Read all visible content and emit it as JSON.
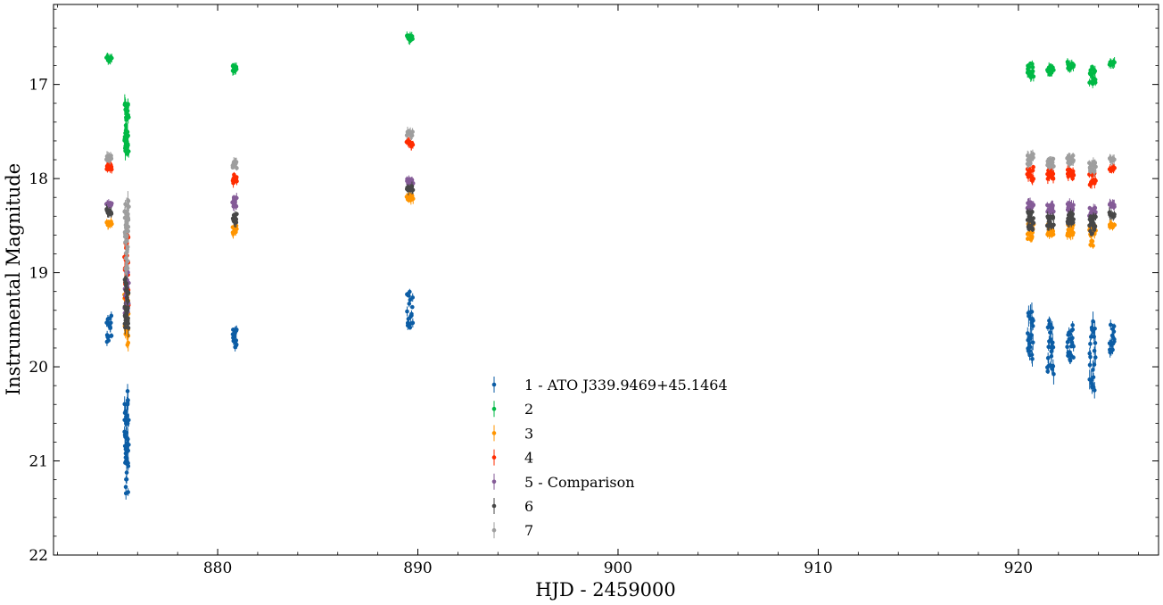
{
  "chart_data": {
    "type": "scatter",
    "title": "",
    "xlabel": "HJD - 2459000",
    "ylabel": "Instrumental Magnitude",
    "xlim": [
      871.8,
      927.0
    ],
    "ylim": [
      22.0,
      16.15
    ],
    "y_inverted": true,
    "x_ticks": [
      880,
      890,
      900,
      910,
      920
    ],
    "y_ticks": [
      17,
      18,
      19,
      20,
      21,
      22
    ],
    "grid": false,
    "legend_position": "lower-center",
    "error_bars": true,
    "series": [
      {
        "name": "1 - ATO J339.9469+45.1464",
        "color": "#0c5da5",
        "segments": [
          {
            "t0": 874.45,
            "t1": 874.7,
            "base": 19.6,
            "amp": 0.35,
            "n": 18
          },
          {
            "t0": 875.35,
            "t1": 875.55,
            "base": 20.8,
            "amp": 1.1,
            "n": 45
          },
          {
            "t0": 880.75,
            "t1": 880.95,
            "base": 19.7,
            "amp": 0.2,
            "n": 18
          },
          {
            "t0": 889.45,
            "t1": 889.75,
            "base": 19.4,
            "amp": 0.45,
            "n": 18
          },
          {
            "t0": 920.45,
            "t1": 920.75,
            "base": 19.7,
            "amp": 0.6,
            "n": 24
          },
          {
            "t0": 921.45,
            "t1": 921.75,
            "base": 19.8,
            "amp": 0.6,
            "n": 24
          },
          {
            "t0": 922.45,
            "t1": 922.75,
            "base": 19.75,
            "amp": 0.4,
            "n": 24
          },
          {
            "t0": 923.55,
            "t1": 923.85,
            "base": 19.9,
            "amp": 0.8,
            "n": 24
          },
          {
            "t0": 924.55,
            "t1": 924.8,
            "base": 19.7,
            "amp": 0.3,
            "n": 18
          }
        ]
      },
      {
        "name": "2",
        "color": "#00b945",
        "segments": [
          {
            "t0": 874.45,
            "t1": 874.7,
            "base": 16.73,
            "amp": 0.05,
            "n": 12
          },
          {
            "t0": 875.35,
            "t1": 875.55,
            "base": 17.5,
            "amp": 0.6,
            "n": 40
          },
          {
            "t0": 880.75,
            "t1": 880.95,
            "base": 16.83,
            "amp": 0.08,
            "n": 12
          },
          {
            "t0": 889.45,
            "t1": 889.75,
            "base": 16.5,
            "amp": 0.06,
            "n": 12
          },
          {
            "t0": 920.45,
            "t1": 920.75,
            "base": 16.85,
            "amp": 0.15,
            "n": 18
          },
          {
            "t0": 921.45,
            "t1": 921.75,
            "base": 16.85,
            "amp": 0.1,
            "n": 18
          },
          {
            "t0": 922.45,
            "t1": 922.75,
            "base": 16.8,
            "amp": 0.08,
            "n": 18
          },
          {
            "t0": 923.55,
            "t1": 923.85,
            "base": 16.9,
            "amp": 0.2,
            "n": 18
          },
          {
            "t0": 924.55,
            "t1": 924.8,
            "base": 16.77,
            "amp": 0.05,
            "n": 10
          }
        ]
      },
      {
        "name": "3",
        "color": "#ff9500",
        "segments": [
          {
            "t0": 874.45,
            "t1": 874.7,
            "base": 18.47,
            "amp": 0.05,
            "n": 12
          },
          {
            "t0": 875.35,
            "t1": 875.55,
            "base": 19.5,
            "amp": 0.6,
            "n": 30
          },
          {
            "t0": 880.75,
            "t1": 880.95,
            "base": 18.55,
            "amp": 0.1,
            "n": 12
          },
          {
            "t0": 889.45,
            "t1": 889.75,
            "base": 18.2,
            "amp": 0.06,
            "n": 12
          },
          {
            "t0": 920.45,
            "t1": 920.75,
            "base": 18.55,
            "amp": 0.2,
            "n": 18
          },
          {
            "t0": 921.45,
            "t1": 921.75,
            "base": 18.55,
            "amp": 0.12,
            "n": 18
          },
          {
            "t0": 922.45,
            "t1": 922.75,
            "base": 18.55,
            "amp": 0.12,
            "n": 18
          },
          {
            "t0": 923.55,
            "t1": 923.85,
            "base": 18.6,
            "amp": 0.25,
            "n": 18
          },
          {
            "t0": 924.55,
            "t1": 924.8,
            "base": 18.5,
            "amp": 0.05,
            "n": 10
          }
        ]
      },
      {
        "name": "4",
        "color": "#ff2c00",
        "segments": [
          {
            "t0": 874.45,
            "t1": 874.7,
            "base": 17.88,
            "amp": 0.05,
            "n": 12
          },
          {
            "t0": 875.35,
            "t1": 875.55,
            "base": 19.0,
            "amp": 0.8,
            "n": 30
          },
          {
            "t0": 880.75,
            "t1": 880.95,
            "base": 18.0,
            "amp": 0.1,
            "n": 12
          },
          {
            "t0": 889.45,
            "t1": 889.75,
            "base": 17.63,
            "amp": 0.05,
            "n": 12
          },
          {
            "t0": 920.45,
            "t1": 920.75,
            "base": 17.95,
            "amp": 0.15,
            "n": 18
          },
          {
            "t0": 921.45,
            "t1": 921.75,
            "base": 17.95,
            "amp": 0.12,
            "n": 18
          },
          {
            "t0": 922.45,
            "t1": 922.75,
            "base": 17.95,
            "amp": 0.1,
            "n": 18
          },
          {
            "t0": 923.55,
            "t1": 923.85,
            "base": 18.0,
            "amp": 0.15,
            "n": 18
          },
          {
            "t0": 924.55,
            "t1": 924.8,
            "base": 17.9,
            "amp": 0.04,
            "n": 10
          }
        ]
      },
      {
        "name": "5 - Comparison",
        "color": "#845b97",
        "segments": [
          {
            "t0": 874.45,
            "t1": 874.7,
            "base": 18.28,
            "amp": 0.04,
            "n": 12
          },
          {
            "t0": 875.35,
            "t1": 875.55,
            "base": 19.2,
            "amp": 0.5,
            "n": 25
          },
          {
            "t0": 880.75,
            "t1": 880.95,
            "base": 18.25,
            "amp": 0.1,
            "n": 12
          },
          {
            "t0": 889.45,
            "t1": 889.75,
            "base": 18.03,
            "amp": 0.05,
            "n": 12
          },
          {
            "t0": 920.45,
            "t1": 920.75,
            "base": 18.3,
            "amp": 0.1,
            "n": 18
          },
          {
            "t0": 921.45,
            "t1": 921.75,
            "base": 18.32,
            "amp": 0.08,
            "n": 18
          },
          {
            "t0": 922.45,
            "t1": 922.75,
            "base": 18.3,
            "amp": 0.08,
            "n": 18
          },
          {
            "t0": 923.55,
            "t1": 923.85,
            "base": 18.35,
            "amp": 0.1,
            "n": 18
          },
          {
            "t0": 924.55,
            "t1": 924.8,
            "base": 18.28,
            "amp": 0.04,
            "n": 10
          }
        ]
      },
      {
        "name": "6",
        "color": "#474747",
        "segments": [
          {
            "t0": 874.45,
            "t1": 874.7,
            "base": 18.35,
            "amp": 0.05,
            "n": 12
          },
          {
            "t0": 875.35,
            "t1": 875.55,
            "base": 19.3,
            "amp": 0.6,
            "n": 30
          },
          {
            "t0": 880.75,
            "t1": 880.95,
            "base": 18.42,
            "amp": 0.1,
            "n": 14
          },
          {
            "t0": 889.45,
            "t1": 889.75,
            "base": 18.1,
            "amp": 0.06,
            "n": 12
          },
          {
            "t0": 920.45,
            "t1": 920.75,
            "base": 18.45,
            "amp": 0.2,
            "n": 20
          },
          {
            "t0": 921.45,
            "t1": 921.75,
            "base": 18.45,
            "amp": 0.12,
            "n": 20
          },
          {
            "t0": 922.45,
            "t1": 922.75,
            "base": 18.42,
            "amp": 0.12,
            "n": 20
          },
          {
            "t0": 923.55,
            "t1": 923.85,
            "base": 18.5,
            "amp": 0.2,
            "n": 20
          },
          {
            "t0": 924.55,
            "t1": 924.8,
            "base": 18.38,
            "amp": 0.05,
            "n": 10
          }
        ]
      },
      {
        "name": "7",
        "color": "#9e9e9e",
        "segments": [
          {
            "t0": 874.45,
            "t1": 874.7,
            "base": 17.78,
            "amp": 0.05,
            "n": 12
          },
          {
            "t0": 875.35,
            "t1": 875.55,
            "base": 18.6,
            "amp": 0.8,
            "n": 40
          },
          {
            "t0": 880.75,
            "t1": 880.95,
            "base": 17.85,
            "amp": 0.08,
            "n": 12
          },
          {
            "t0": 889.45,
            "t1": 889.75,
            "base": 17.52,
            "amp": 0.05,
            "n": 12
          },
          {
            "t0": 920.45,
            "t1": 920.75,
            "base": 17.8,
            "amp": 0.12,
            "n": 20
          },
          {
            "t0": 921.45,
            "t1": 921.75,
            "base": 17.82,
            "amp": 0.1,
            "n": 20
          },
          {
            "t0": 922.45,
            "t1": 922.75,
            "base": 17.8,
            "amp": 0.1,
            "n": 20
          },
          {
            "t0": 923.55,
            "t1": 923.85,
            "base": 17.88,
            "amp": 0.12,
            "n": 20
          },
          {
            "t0": 924.55,
            "t1": 924.8,
            "base": 17.8,
            "amp": 0.04,
            "n": 10
          }
        ]
      }
    ]
  }
}
